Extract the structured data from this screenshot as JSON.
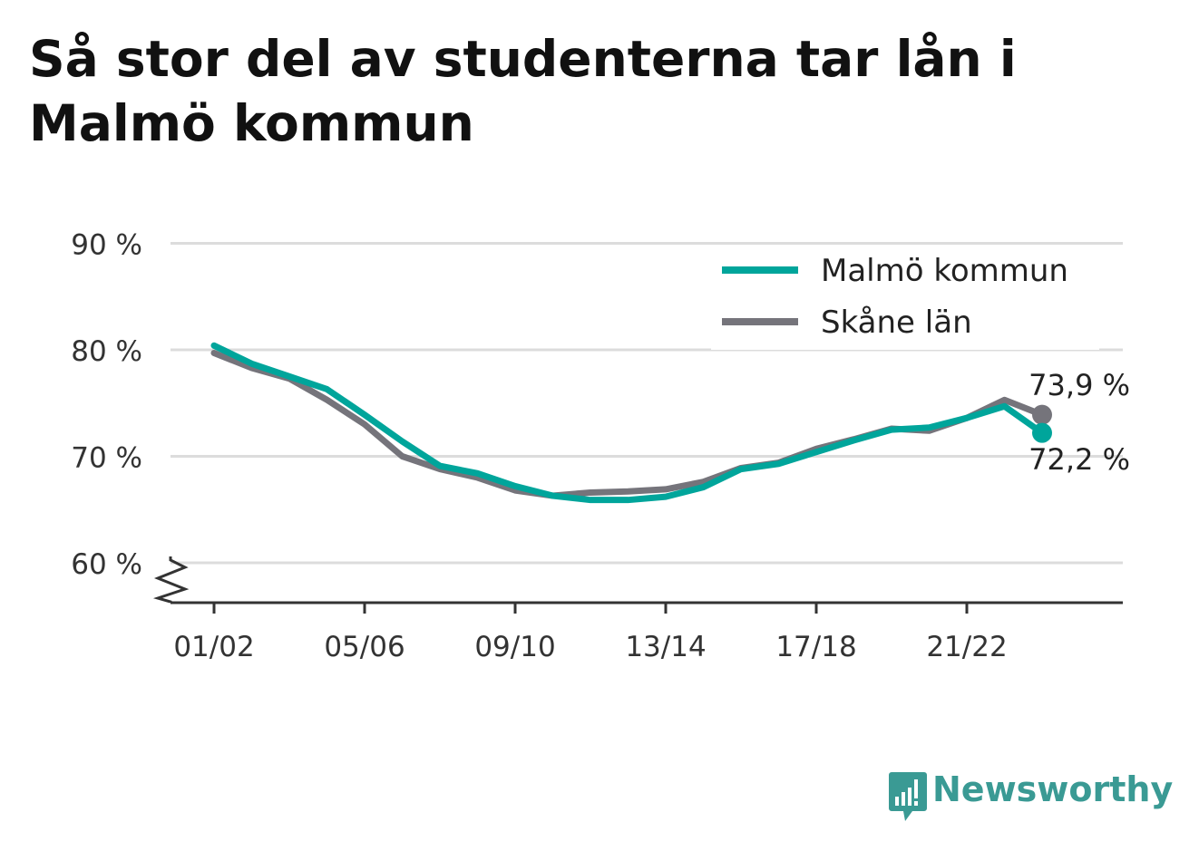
{
  "title": "Så stor del av studenterna tar lån i Malmö kommun",
  "colors": {
    "malmo": "#00a59b",
    "skane": "#75747b",
    "grid": "#dcdcdc",
    "axis": "#333333",
    "brand": "#3a9a94"
  },
  "brand": {
    "name": "Newsworthy",
    "icon": "bar-chart-speech-bubble-icon"
  },
  "chart_data": {
    "type": "line",
    "title": "Så stor del av studenterna tar lån i Malmö kommun",
    "xlabel": "",
    "ylabel": "",
    "x": [
      "01/02",
      "02/03",
      "03/04",
      "04/05",
      "05/06",
      "06/07",
      "07/08",
      "08/09",
      "09/10",
      "10/11",
      "11/12",
      "12/13",
      "13/14",
      "14/15",
      "15/16",
      "16/17",
      "17/18",
      "18/19",
      "19/20",
      "20/21",
      "21/22",
      "22/23",
      "23/24"
    ],
    "x_tick_labels": [
      "01/02",
      "05/06",
      "09/10",
      "13/14",
      "17/18",
      "21/22"
    ],
    "y_tick_labels": [
      "60 %",
      "70 %",
      "80 %",
      "90 %"
    ],
    "y_ticks": [
      60,
      70,
      80,
      90
    ],
    "ylim": [
      56.2,
      90
    ],
    "y_axis_break": true,
    "grid": true,
    "legend_position": "top-right",
    "series": [
      {
        "name": "Malmö kommun",
        "color": "#00a59b",
        "values": [
          80.4,
          78.7,
          77.5,
          76.3,
          73.9,
          71.4,
          69.1,
          68.4,
          67.2,
          66.3,
          65.9,
          65.9,
          66.2,
          67.1,
          68.8,
          69.3,
          70.4,
          71.5,
          72.5,
          72.7,
          73.6,
          74.7,
          72.2
        ],
        "end_label": "72,2 %"
      },
      {
        "name": "Skåne län",
        "color": "#75747b",
        "values": [
          79.7,
          78.3,
          77.3,
          75.3,
          73.0,
          70.0,
          68.8,
          68.0,
          66.8,
          66.3,
          66.6,
          66.7,
          66.9,
          67.6,
          68.9,
          69.4,
          70.7,
          71.6,
          72.6,
          72.4,
          73.6,
          75.3,
          73.9
        ],
        "end_label": "73,9 %"
      }
    ]
  }
}
